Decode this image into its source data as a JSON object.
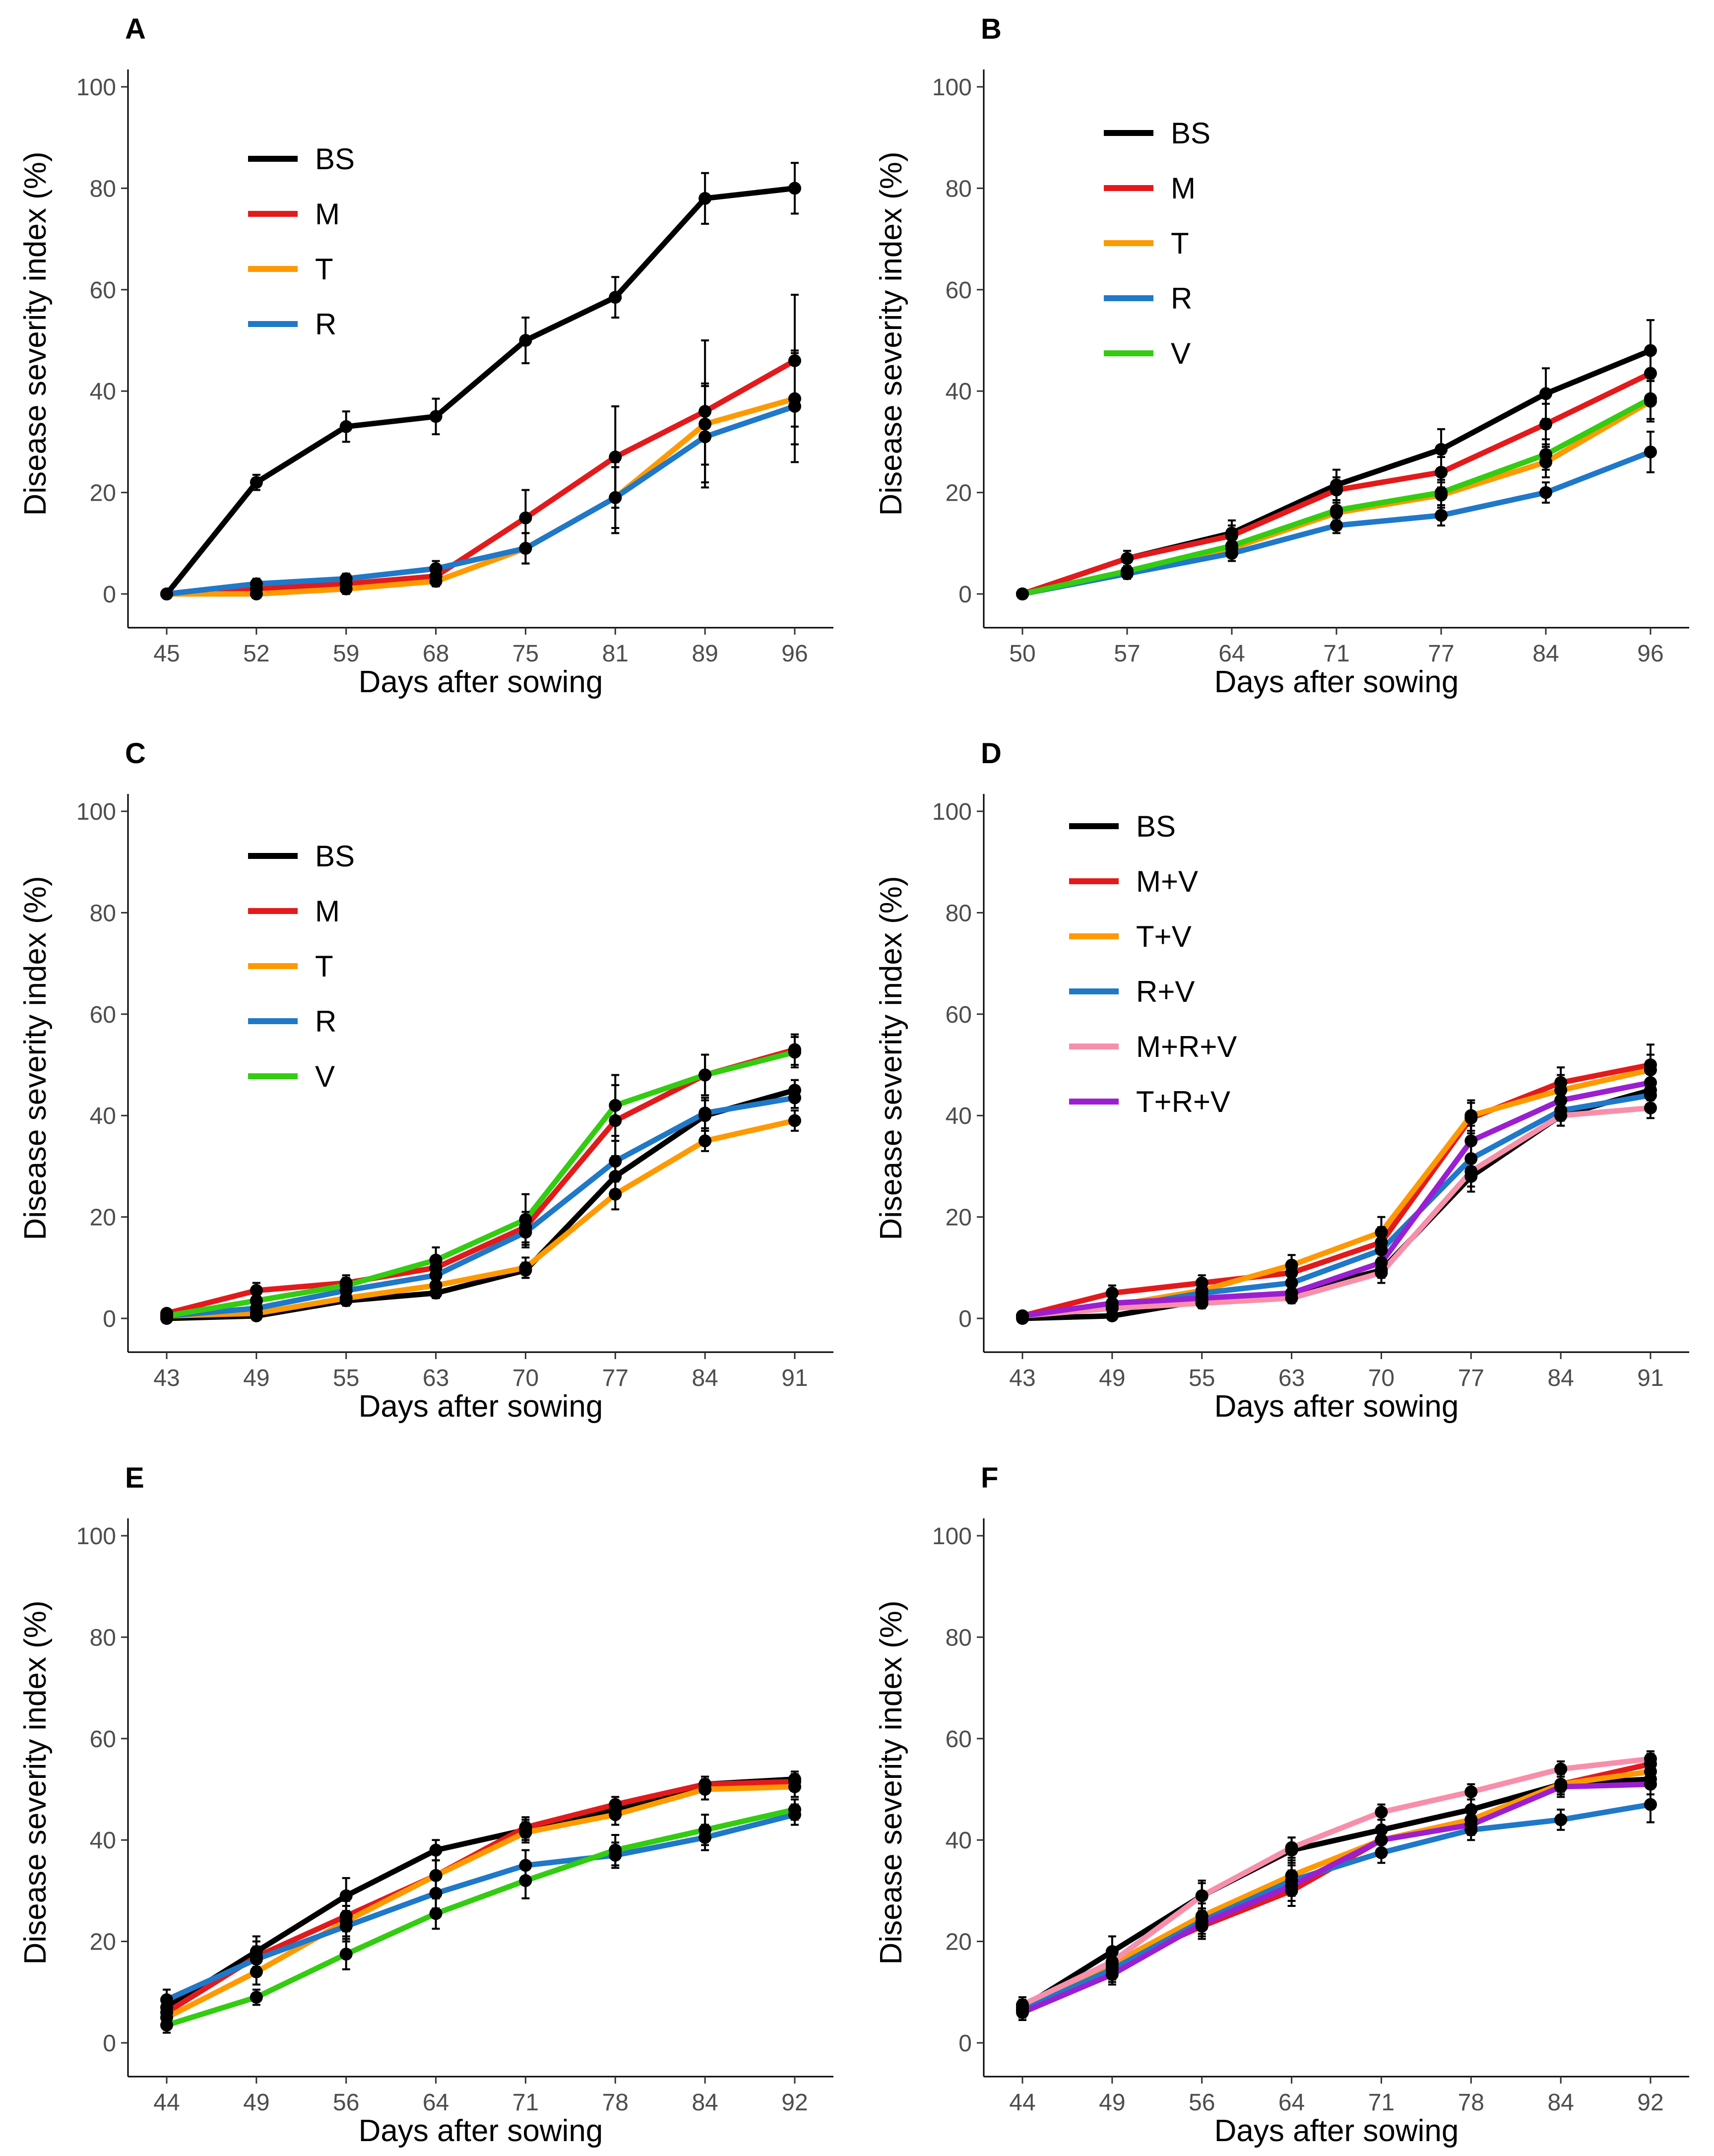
{
  "chart_data": [
    {
      "panel": "A",
      "type": "line",
      "xlabel": "Days after sowing",
      "ylabel": "Disease severity index (%)",
      "ylim": [
        0,
        100
      ],
      "yticks": [
        0,
        20,
        40,
        60,
        80,
        100
      ],
      "categories": [
        "45",
        "52",
        "59",
        "68",
        "75",
        "81",
        "89",
        "96"
      ],
      "legend": [
        "BS",
        "M",
        "T",
        "R"
      ],
      "series": [
        {
          "name": "BS",
          "color": "#000000",
          "values": [
            0,
            22,
            33,
            35,
            50,
            58.5,
            78,
            80
          ],
          "errors": [
            0.5,
            1.5,
            3,
            3.5,
            4.5,
            4,
            5,
            5
          ]
        },
        {
          "name": "M",
          "color": "#e31a1c",
          "values": [
            0,
            1,
            2,
            3.5,
            15,
            27,
            36,
            46
          ],
          "errors": [
            0.5,
            1,
            1,
            1.5,
            5.5,
            10,
            14,
            13
          ]
        },
        {
          "name": "T",
          "color": "#ff9900",
          "values": [
            0,
            0,
            1,
            2.5,
            9,
            19,
            33.5,
            38.5
          ],
          "errors": [
            0.5,
            0.5,
            1,
            1,
            3,
            6,
            8,
            9
          ]
        },
        {
          "name": "R",
          "color": "#1f78c8",
          "values": [
            0,
            2,
            3,
            5,
            9,
            19,
            31,
            37
          ],
          "errors": [
            0.5,
            1,
            1,
            1.5,
            3,
            7,
            10,
            11
          ]
        }
      ]
    },
    {
      "panel": "B",
      "type": "line",
      "xlabel": "Days after sowing",
      "ylabel": "Disease severity index (%)",
      "ylim": [
        0,
        100
      ],
      "yticks": [
        0,
        20,
        40,
        60,
        80,
        100
      ],
      "categories": [
        "50",
        "57",
        "64",
        "71",
        "77",
        "84",
        "96"
      ],
      "legend": [
        "BS",
        "M",
        "T",
        "R",
        "V"
      ],
      "series": [
        {
          "name": "BS",
          "color": "#000000",
          "values": [
            0,
            7,
            12,
            21.5,
            28.5,
            39.5,
            48
          ],
          "errors": [
            0.5,
            1.5,
            2.5,
            3,
            4,
            5,
            6
          ]
        },
        {
          "name": "M",
          "color": "#e31a1c",
          "values": [
            0,
            7,
            11.5,
            20.5,
            24,
            33.5,
            43.5
          ],
          "errors": [
            0.5,
            1.5,
            2,
            2.5,
            3,
            4,
            5
          ]
        },
        {
          "name": "T",
          "color": "#ff9900",
          "values": [
            0,
            4,
            9,
            16,
            19.5,
            26,
            38
          ],
          "errors": [
            0.5,
            1,
            1.5,
            2,
            2.5,
            3,
            4
          ]
        },
        {
          "name": "R",
          "color": "#1f78c8",
          "values": [
            0,
            4,
            8,
            13.5,
            15.5,
            20,
            28
          ],
          "errors": [
            0.5,
            1,
            1.5,
            1.5,
            2,
            2,
            4
          ]
        },
        {
          "name": "V",
          "color": "#33cc11",
          "values": [
            0,
            4.5,
            9.5,
            16.5,
            20,
            27.5,
            38.5
          ],
          "errors": [
            0.5,
            1,
            1.5,
            2,
            2.5,
            3,
            4
          ]
        }
      ]
    },
    {
      "panel": "C",
      "type": "line",
      "xlabel": "Days after sowing",
      "ylabel": "Disease severity index (%)",
      "ylim": [
        0,
        100
      ],
      "yticks": [
        0,
        20,
        40,
        60,
        80,
        100
      ],
      "categories": [
        "43",
        "49",
        "55",
        "63",
        "70",
        "77",
        "84",
        "91"
      ],
      "legend": [
        "BS",
        "M",
        "T",
        "R",
        "V"
      ],
      "series": [
        {
          "name": "BS",
          "color": "#000000",
          "values": [
            0,
            0.5,
            3.5,
            5,
            9.5,
            28,
            40,
            45
          ],
          "errors": [
            0.5,
            0.5,
            1,
            1,
            1.5,
            4,
            3,
            2
          ]
        },
        {
          "name": "M",
          "color": "#e31a1c",
          "values": [
            1,
            5.5,
            7,
            10,
            18,
            39,
            48,
            53
          ],
          "errors": [
            0.5,
            1.5,
            1.5,
            2,
            3,
            7,
            4,
            3
          ]
        },
        {
          "name": "T",
          "color": "#ff9900",
          "values": [
            0.5,
            1,
            4,
            6.5,
            10,
            24.5,
            35,
            39
          ],
          "errors": [
            0.5,
            0.5,
            1,
            1.5,
            2,
            3,
            2,
            2
          ]
        },
        {
          "name": "R",
          "color": "#1f78c8",
          "values": [
            0.5,
            2,
            5.5,
            8.5,
            17,
            31,
            40.5,
            43.5
          ],
          "errors": [
            0.5,
            1,
            1.5,
            2,
            3,
            4,
            3,
            2
          ]
        },
        {
          "name": "V",
          "color": "#33cc11",
          "values": [
            0.5,
            3.5,
            6.5,
            11.5,
            19.5,
            42,
            48,
            52.5
          ],
          "errors": [
            0.5,
            1,
            1.5,
            2.5,
            5,
            6,
            4,
            3
          ]
        }
      ]
    },
    {
      "panel": "D",
      "type": "line",
      "xlabel": "Days after sowing",
      "ylabel": "Disease severity index (%)",
      "ylim": [
        0,
        100
      ],
      "yticks": [
        0,
        20,
        40,
        60,
        80,
        100
      ],
      "categories": [
        "43",
        "49",
        "55",
        "63",
        "70",
        "77",
        "84",
        "91"
      ],
      "legend": [
        "BS",
        "M+V",
        "T+V",
        "R+V",
        "M+R+V",
        "T+R+V"
      ],
      "series": [
        {
          "name": "BS",
          "color": "#000000",
          "values": [
            0,
            0.5,
            3.5,
            5,
            9.5,
            28,
            40,
            45
          ],
          "errors": [
            0.5,
            0.5,
            1,
            1,
            1.5,
            3,
            2,
            2
          ]
        },
        {
          "name": "M+V",
          "color": "#e31a1c",
          "values": [
            0.5,
            5,
            7,
            9,
            15,
            39.5,
            46.5,
            50
          ],
          "errors": [
            0.5,
            1.5,
            1.5,
            2,
            3,
            3,
            3,
            4
          ]
        },
        {
          "name": "T+V",
          "color": "#ff9900",
          "values": [
            0.5,
            2.5,
            5.5,
            10.5,
            17,
            40,
            45,
            49
          ],
          "errors": [
            0.5,
            1,
            1.5,
            2,
            3,
            3,
            3,
            3
          ]
        },
        {
          "name": "R+V",
          "color": "#1f78c8",
          "values": [
            0.5,
            2,
            5,
            7,
            13.5,
            31.5,
            41,
            44
          ],
          "errors": [
            0.5,
            1,
            1.5,
            2,
            2.5,
            3,
            2,
            2
          ]
        },
        {
          "name": "M+R+V",
          "color": "#f78fab",
          "values": [
            0.5,
            2,
            3,
            4,
            9,
            29,
            40,
            41.5
          ],
          "errors": [
            0.5,
            1,
            1,
            1,
            2,
            3,
            2,
            2
          ]
        },
        {
          "name": "T+R+V",
          "color": "#9b1fd1",
          "values": [
            0.5,
            3,
            4,
            5,
            11,
            35,
            43,
            46.5
          ],
          "errors": [
            0.5,
            1,
            1,
            1.5,
            2,
            3,
            2,
            2
          ]
        }
      ]
    },
    {
      "panel": "E",
      "type": "line",
      "xlabel": "Days after sowing",
      "ylabel": "Disease severity index (%)",
      "ylim": [
        0,
        100
      ],
      "yticks": [
        0,
        20,
        40,
        60,
        80,
        100
      ],
      "categories": [
        "44",
        "49",
        "56",
        "64",
        "71",
        "78",
        "84",
        "92"
      ],
      "legend": [],
      "series": [
        {
          "name": "BS",
          "color": "#000000",
          "values": [
            7,
            18,
            29,
            38,
            42,
            46,
            51,
            52
          ],
          "errors": [
            2,
            3,
            3.5,
            2,
            2,
            1.5,
            1.5,
            1.5
          ]
        },
        {
          "name": "M",
          "color": "#e31a1c",
          "values": [
            6,
            17,
            25,
            33,
            42.5,
            47,
            51,
            51.5
          ],
          "errors": [
            2,
            3,
            3,
            3,
            2,
            1.5,
            1.5,
            1.5
          ]
        },
        {
          "name": "T",
          "color": "#ff9900",
          "values": [
            5,
            14,
            24,
            33,
            41.5,
            45,
            50,
            50.5
          ],
          "errors": [
            2,
            2.5,
            3,
            3,
            2,
            2,
            2,
            2
          ]
        },
        {
          "name": "R",
          "color": "#1f78c8",
          "values": [
            8.5,
            16.5,
            23,
            29.5,
            35,
            37,
            40.5,
            45
          ],
          "errors": [
            2,
            2.5,
            3,
            3,
            3,
            2.5,
            2.5,
            2
          ]
        },
        {
          "name": "V",
          "color": "#33cc11",
          "values": [
            3.5,
            9,
            17.5,
            25.5,
            32,
            38,
            42,
            46
          ],
          "errors": [
            1.5,
            1.5,
            3,
            3,
            3.5,
            3,
            3,
            2
          ]
        }
      ]
    },
    {
      "panel": "F",
      "type": "line",
      "xlabel": "Days after sowing",
      "ylabel": "Disease severity index (%)",
      "ylim": [
        0,
        100
      ],
      "yticks": [
        0,
        20,
        40,
        60,
        80,
        100
      ],
      "categories": [
        "44",
        "49",
        "56",
        "64",
        "71",
        "78",
        "84",
        "92"
      ],
      "legend": [],
      "series": [
        {
          "name": "BS",
          "color": "#000000",
          "values": [
            7,
            18,
            29,
            38,
            42,
            46,
            51,
            52
          ],
          "errors": [
            1.5,
            3,
            3,
            2.5,
            2,
            2,
            1.5,
            1.5
          ]
        },
        {
          "name": "M+V",
          "color": "#e31a1c",
          "values": [
            6.5,
            15,
            23,
            30,
            40,
            44,
            51,
            55
          ],
          "errors": [
            1.5,
            2.5,
            2.5,
            3,
            2,
            2,
            2,
            2
          ]
        },
        {
          "name": "T+V",
          "color": "#ff9900",
          "values": [
            6.5,
            15.5,
            25,
            33,
            40,
            44,
            51,
            53.5
          ],
          "errors": [
            1.5,
            2.5,
            2.5,
            3,
            2,
            2,
            2,
            2
          ]
        },
        {
          "name": "R+V",
          "color": "#1f78c8",
          "values": [
            6.5,
            14.5,
            24,
            32,
            37.5,
            42,
            44,
            47
          ],
          "errors": [
            1.5,
            2.5,
            2.5,
            3,
            2,
            2,
            2,
            3.5
          ]
        },
        {
          "name": "M+R+V",
          "color": "#f78fab",
          "values": [
            7.5,
            16,
            29,
            38.5,
            45.5,
            49.5,
            54,
            56
          ],
          "errors": [
            1.5,
            2.5,
            2.5,
            2,
            1.5,
            1.5,
            1.5,
            1.5
          ]
        },
        {
          "name": "T+R+V",
          "color": "#9b1fd1",
          "values": [
            6,
            13.5,
            23.5,
            31,
            40,
            43,
            50.5,
            51
          ],
          "errors": [
            1.5,
            2,
            2.5,
            3,
            2,
            2,
            2,
            2
          ]
        }
      ]
    }
  ]
}
